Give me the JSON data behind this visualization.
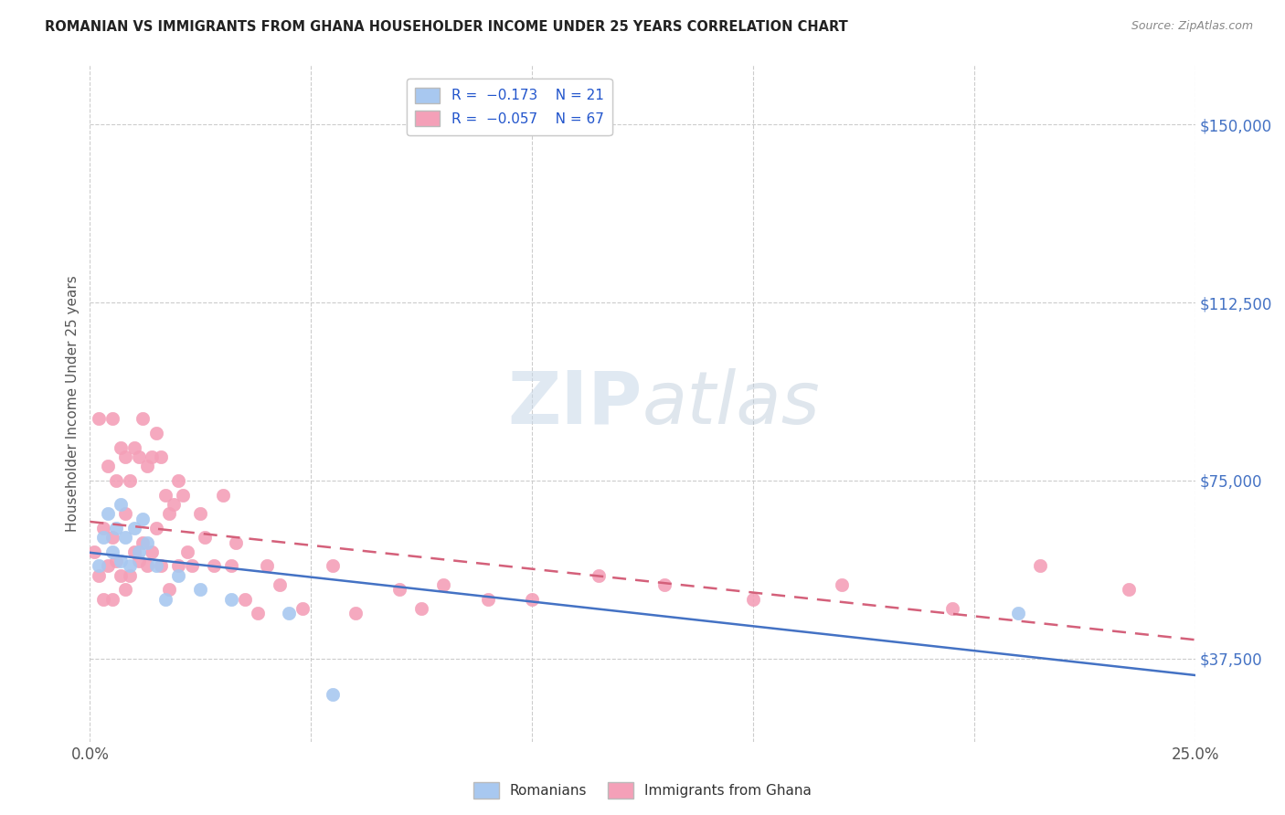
{
  "title": "ROMANIAN VS IMMIGRANTS FROM GHANA HOUSEHOLDER INCOME UNDER 25 YEARS CORRELATION CHART",
  "source": "Source: ZipAtlas.com",
  "ylabel": "Householder Income Under 25 years",
  "xlim": [
    0.0,
    0.25
  ],
  "ylim": [
    20000,
    162500
  ],
  "yticks": [
    37500,
    75000,
    112500,
    150000
  ],
  "ytick_labels": [
    "$37,500",
    "$75,000",
    "$112,500",
    "$150,000"
  ],
  "xticks": [
    0.0,
    0.05,
    0.1,
    0.15,
    0.2,
    0.25
  ],
  "xtick_labels": [
    "0.0%",
    "",
    "",
    "",
    "",
    "25.0%"
  ],
  "blue_color": "#A8C8F0",
  "pink_color": "#F4A0B8",
  "line_blue": "#4472C4",
  "line_pink": "#D4607A",
  "watermark_color": "#C8D8E8",
  "romanians_x": [
    0.002,
    0.003,
    0.004,
    0.005,
    0.006,
    0.007,
    0.007,
    0.008,
    0.009,
    0.01,
    0.011,
    0.012,
    0.013,
    0.015,
    0.017,
    0.02,
    0.025,
    0.032,
    0.045,
    0.055,
    0.21
  ],
  "romanians_y": [
    57000,
    63000,
    68000,
    60000,
    65000,
    70000,
    58000,
    63000,
    57000,
    65000,
    60000,
    67000,
    62000,
    57000,
    50000,
    55000,
    52000,
    50000,
    47000,
    30000,
    47000
  ],
  "ghana_x": [
    0.001,
    0.002,
    0.002,
    0.003,
    0.003,
    0.004,
    0.004,
    0.005,
    0.005,
    0.005,
    0.006,
    0.006,
    0.007,
    0.007,
    0.008,
    0.008,
    0.008,
    0.009,
    0.009,
    0.01,
    0.01,
    0.011,
    0.011,
    0.012,
    0.012,
    0.013,
    0.013,
    0.014,
    0.014,
    0.015,
    0.015,
    0.016,
    0.016,
    0.017,
    0.018,
    0.018,
    0.019,
    0.02,
    0.02,
    0.021,
    0.022,
    0.023,
    0.025,
    0.026,
    0.028,
    0.03,
    0.032,
    0.033,
    0.035,
    0.038,
    0.04,
    0.043,
    0.048,
    0.055,
    0.06,
    0.07,
    0.075,
    0.08,
    0.09,
    0.1,
    0.115,
    0.13,
    0.15,
    0.17,
    0.195,
    0.215,
    0.235
  ],
  "ghana_y": [
    60000,
    88000,
    55000,
    65000,
    50000,
    78000,
    57000,
    88000,
    63000,
    50000,
    75000,
    58000,
    82000,
    55000,
    80000,
    68000,
    52000,
    75000,
    55000,
    82000,
    60000,
    80000,
    58000,
    88000,
    62000,
    78000,
    57000,
    80000,
    60000,
    85000,
    65000,
    80000,
    57000,
    72000,
    68000,
    52000,
    70000,
    75000,
    57000,
    72000,
    60000,
    57000,
    68000,
    63000,
    57000,
    72000,
    57000,
    62000,
    50000,
    47000,
    57000,
    53000,
    48000,
    57000,
    47000,
    52000,
    48000,
    53000,
    50000,
    50000,
    55000,
    53000,
    50000,
    53000,
    48000,
    57000,
    52000
  ]
}
